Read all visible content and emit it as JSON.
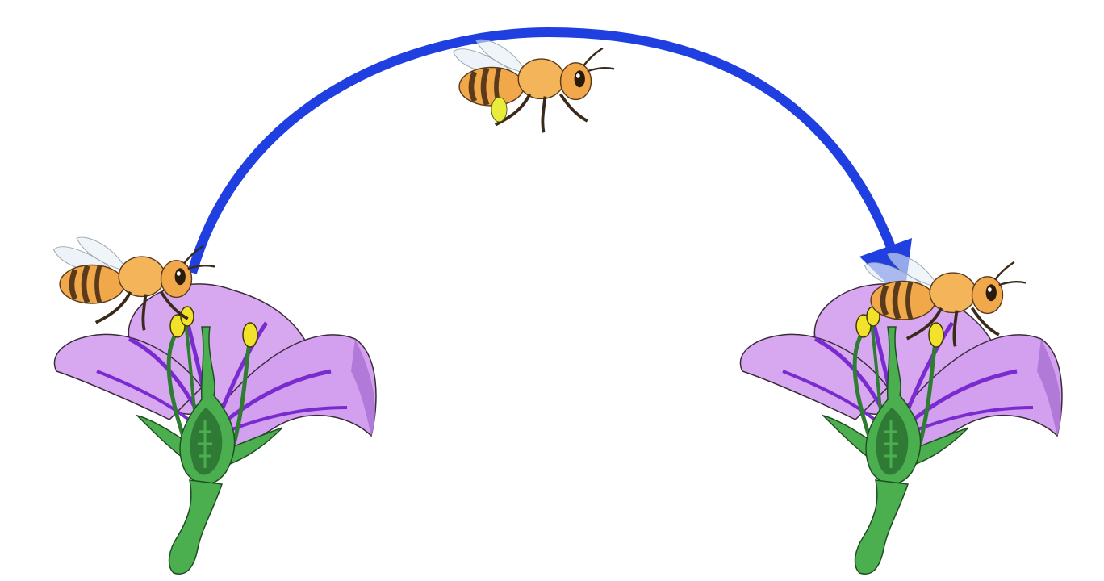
{
  "colors": {
    "background": "#ffffff",
    "arrow": "#1f3fe0",
    "petal_light": "#d7a8f0",
    "petal_dark": "#b27ad8",
    "petal_stripe": "#7a2bd0",
    "stem": "#4caf4f",
    "stem_dark": "#2e7d32",
    "ovary_inner": "#2f7a34",
    "anther": "#f2e22c",
    "bee_body": "#f0a84a",
    "bee_stripe": "#5b3a1c",
    "pollen": "#e8ec3a"
  },
  "icons": [
    "bee-icon",
    "flower-icon",
    "arrow-icon"
  ]
}
